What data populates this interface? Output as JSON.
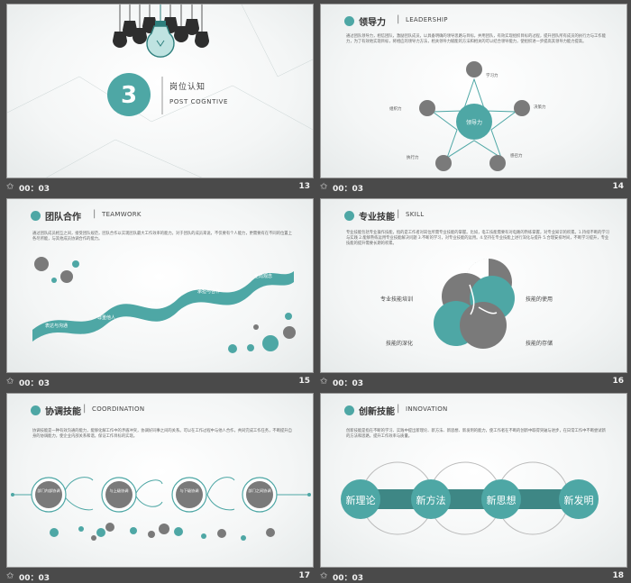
{
  "slides": [
    {
      "number": "13",
      "time": "00：03",
      "badge": "3",
      "title_zh": "岗位认知",
      "title_en": "POST COGNTIVE"
    },
    {
      "number": "14",
      "time": "00：03",
      "heading_zh": "领导力",
      "heading_en": "LEADERSHIP",
      "body": "通过团队领导力，相信团队，激励团队成员，以具备明确的领导思路与目标，并用团队，有效实现组织目标的过程，提升团队所有成员的执行力与工作能力，为了有效地实现目标，将相应的领导力方法，相关领导力赋能的方法和相关的可以结合领导能力，使组织进一步提高其领导力能力提高。",
      "center": "领导力",
      "nodes": [
        "学习力",
        "决策力",
        "感召力",
        "执行力",
        "组织力"
      ]
    },
    {
      "number": "15",
      "time": "00：03",
      "heading_zh": "团队合作",
      "heading_en": "TEAMWORK",
      "body": "通过团队成员相互之间，接受团队规范，团队合作以实现团队最大工作效率的能力。对于团队的成员来说，不仅要有个人能力，更需要有在不同的位置上各尽所能，与其他成员协调合作的能力。",
      "steps": [
        "表达与沟通",
        "尊重他人",
        "欣赏他人",
        "承担与合作",
        "全局观念"
      ]
    },
    {
      "number": "16",
      "time": "00：03",
      "heading_zh": "专业技能",
      "heading_en": "SKILL",
      "body": "专业技能包括专业操作技能，指的是工作者对岗位所需专业技能的掌握。比如，电工技能需要有对电路的熟练掌握，对专业知识的积累。1.持续不断的学习与实践 2.能够熟练运用专业技能解决问题 3.不断的学习，对专业技能的运用。4.坚持在专业技能上进行深化与提升 5.合理安排时间，不断学习提升，专业技能的提升需要长期的积累。",
      "labels": [
        "专业技能培训",
        "技能的使用",
        "技能的深化",
        "技能的存储"
      ]
    },
    {
      "number": "17",
      "time": "00：03",
      "heading_zh": "协调技能",
      "heading_en": "COORDINATION",
      "body": "协调技能是一种有效沟通的能力，能够化解工作中的矛盾冲突，协调好同事之间的关系。可以在工作过程中与他人合作，共同完成工作任务，不断提升自身的协调能力，使企业内部关系和谐，保证工作目标的实现。",
      "circles": [
        "部门内部协调",
        "与上级协调",
        "与下级协调",
        "部门之间协调"
      ]
    },
    {
      "number": "18",
      "time": "00：03",
      "heading_zh": "创新技能",
      "heading_en": "INNOVATION",
      "body": "创新技能是指在不断的学习、实践中提出新理论、新方法、新思想、新发明的能力，使工作者在不断的创新中取得突破与进步，在日常工作中不断尝试新的方法和思路，提升工作效率与质量。",
      "items": [
        "新理论",
        "新方法",
        "新思想",
        "新发明"
      ]
    }
  ],
  "colors": {
    "teal": "#4ea7a5",
    "gray": "#7a7a7a",
    "dark": "#333333"
  }
}
